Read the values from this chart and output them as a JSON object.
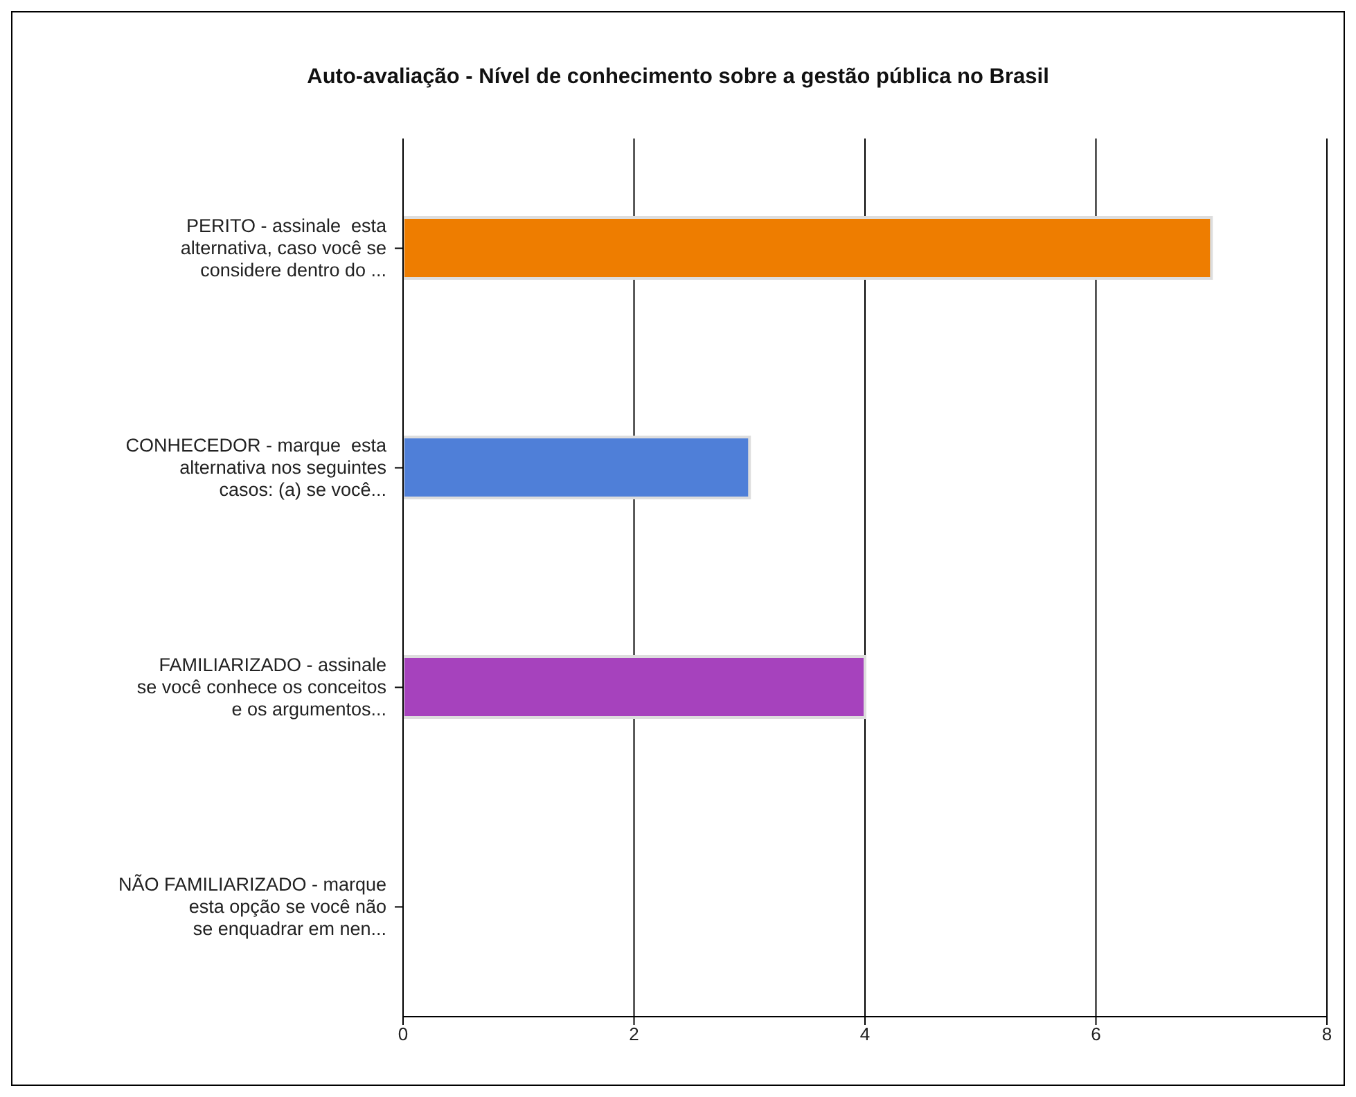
{
  "chart_data": {
    "type": "bar",
    "orientation": "horizontal",
    "title": "Auto-avaliação - Nível de conhecimento sobre a gestão pública no Brasil",
    "categories": [
      "PERITO - assinale  esta\nalternativa, caso você se\nconsidere dentro do ...",
      "CONHECEDOR - marque  esta\nalternativa nos seguintes\ncasos: (a) se você...",
      "FAMILIARIZADO - assinale\nse você conhece os conceitos\ne os argumentos...",
      "NÃO FAMILIARIZADO - marque\nesta opção se você não\nse enquadrar em nen..."
    ],
    "values": [
      7,
      3,
      4,
      0
    ],
    "colors": [
      "#ee7d00",
      "#4f7fd8",
      "#a642bd",
      "#888888"
    ],
    "xlim": [
      0,
      8
    ],
    "xticks": [
      0,
      2,
      4,
      6,
      8
    ],
    "grid": "x"
  }
}
